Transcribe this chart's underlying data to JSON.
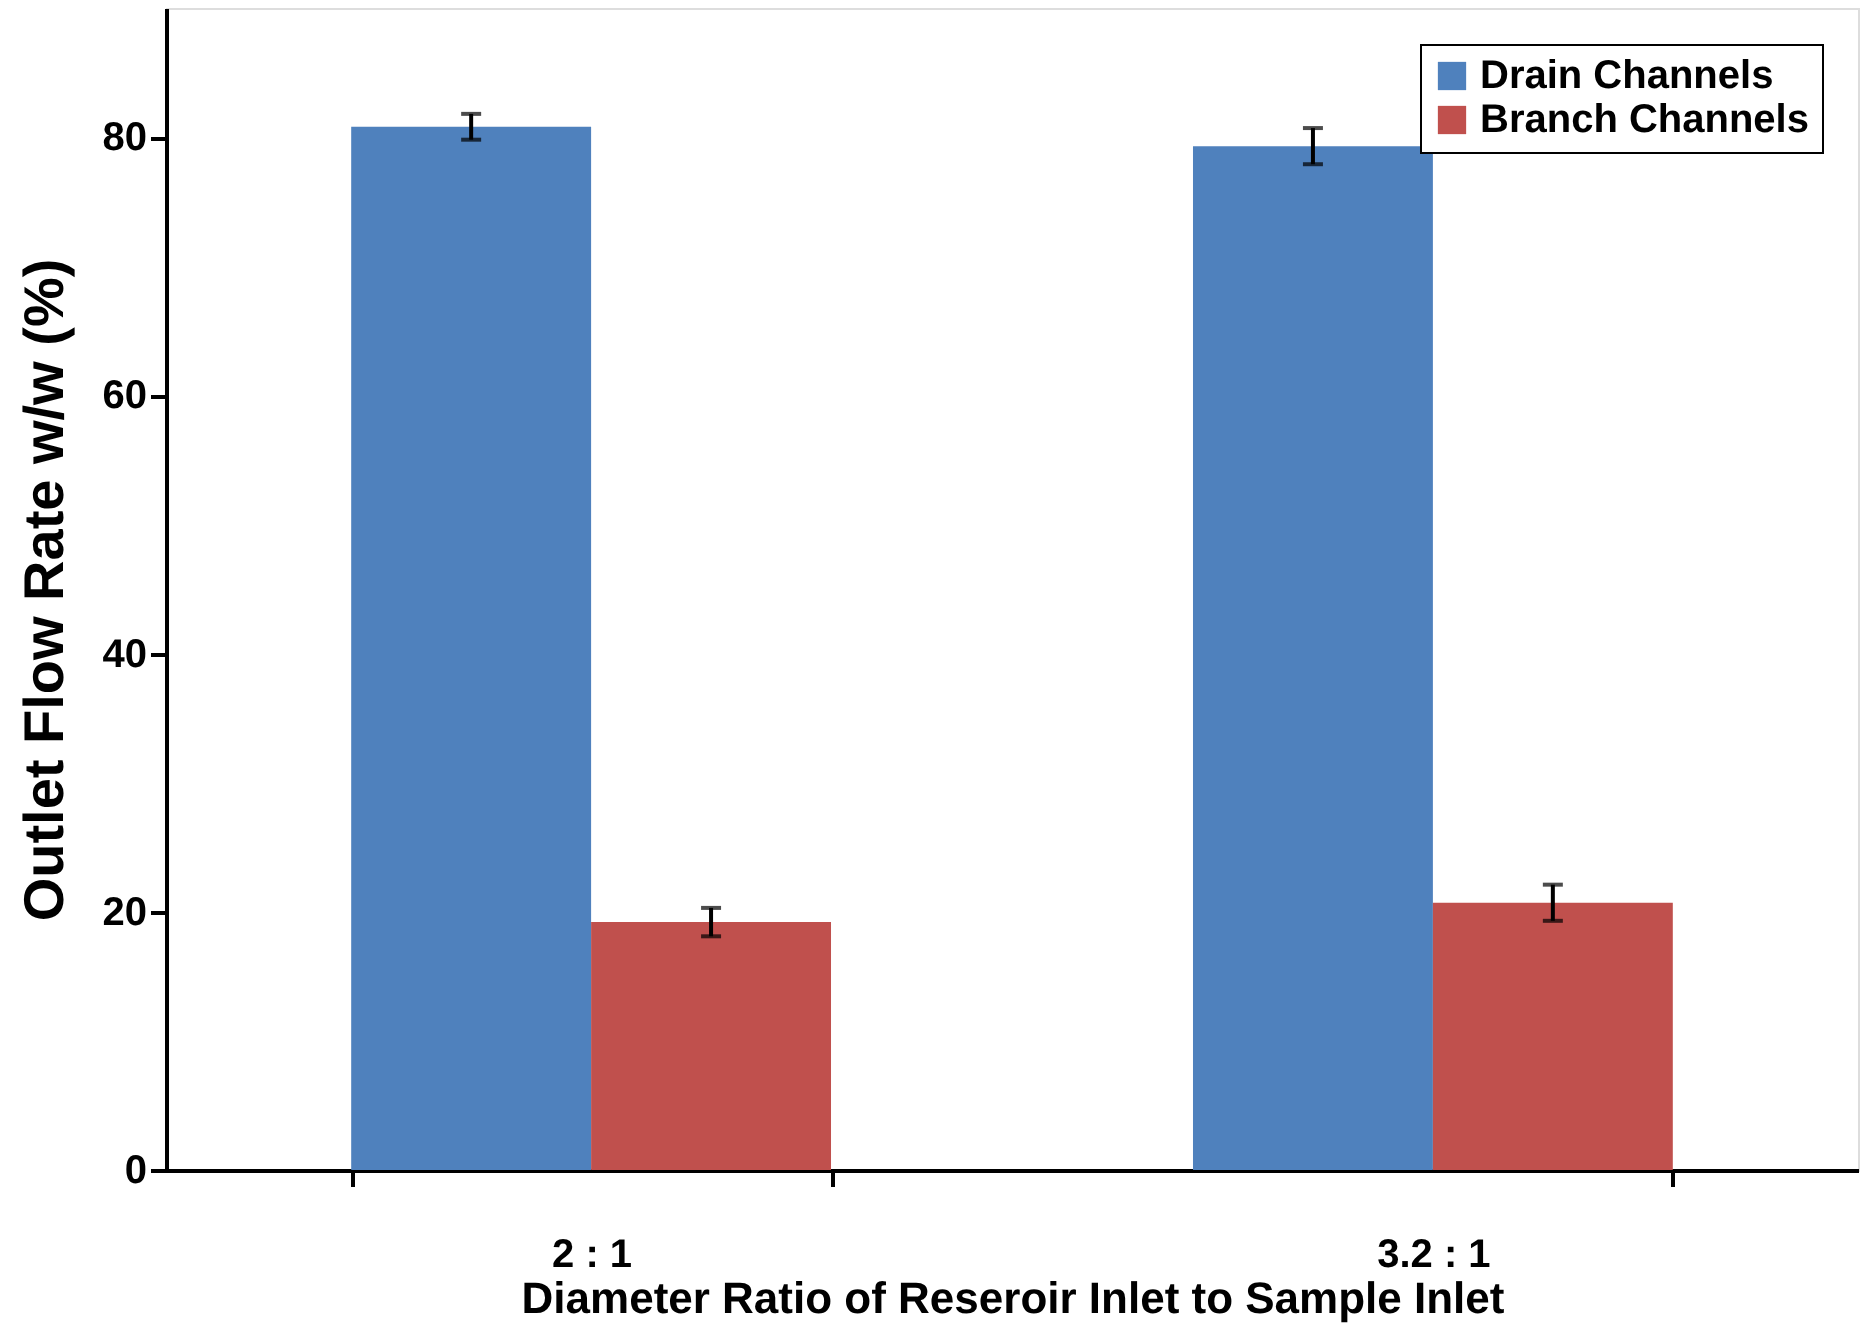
{
  "chart_data": {
    "type": "bar",
    "xlabel": "Diameter Ratio of Reseroir Inlet to Sample Inlet",
    "ylabel": "Outlet Flow Rate w/w (%)",
    "categories": [
      "2 : 1",
      "3.2 : 1"
    ],
    "series": [
      {
        "name": "Drain Channels",
        "color": "#4f81bd",
        "values": [
          80.8,
          79.3
        ],
        "errors": [
          1.0,
          1.4
        ]
      },
      {
        "name": "Branch Channels",
        "color": "#c0504d",
        "values": [
          19.2,
          20.7
        ],
        "errors": [
          1.1,
          1.4
        ]
      }
    ],
    "ylim": [
      0,
      90
    ],
    "yticks": [
      0,
      20,
      40,
      60,
      80
    ],
    "grid": false,
    "legend": "top right"
  }
}
